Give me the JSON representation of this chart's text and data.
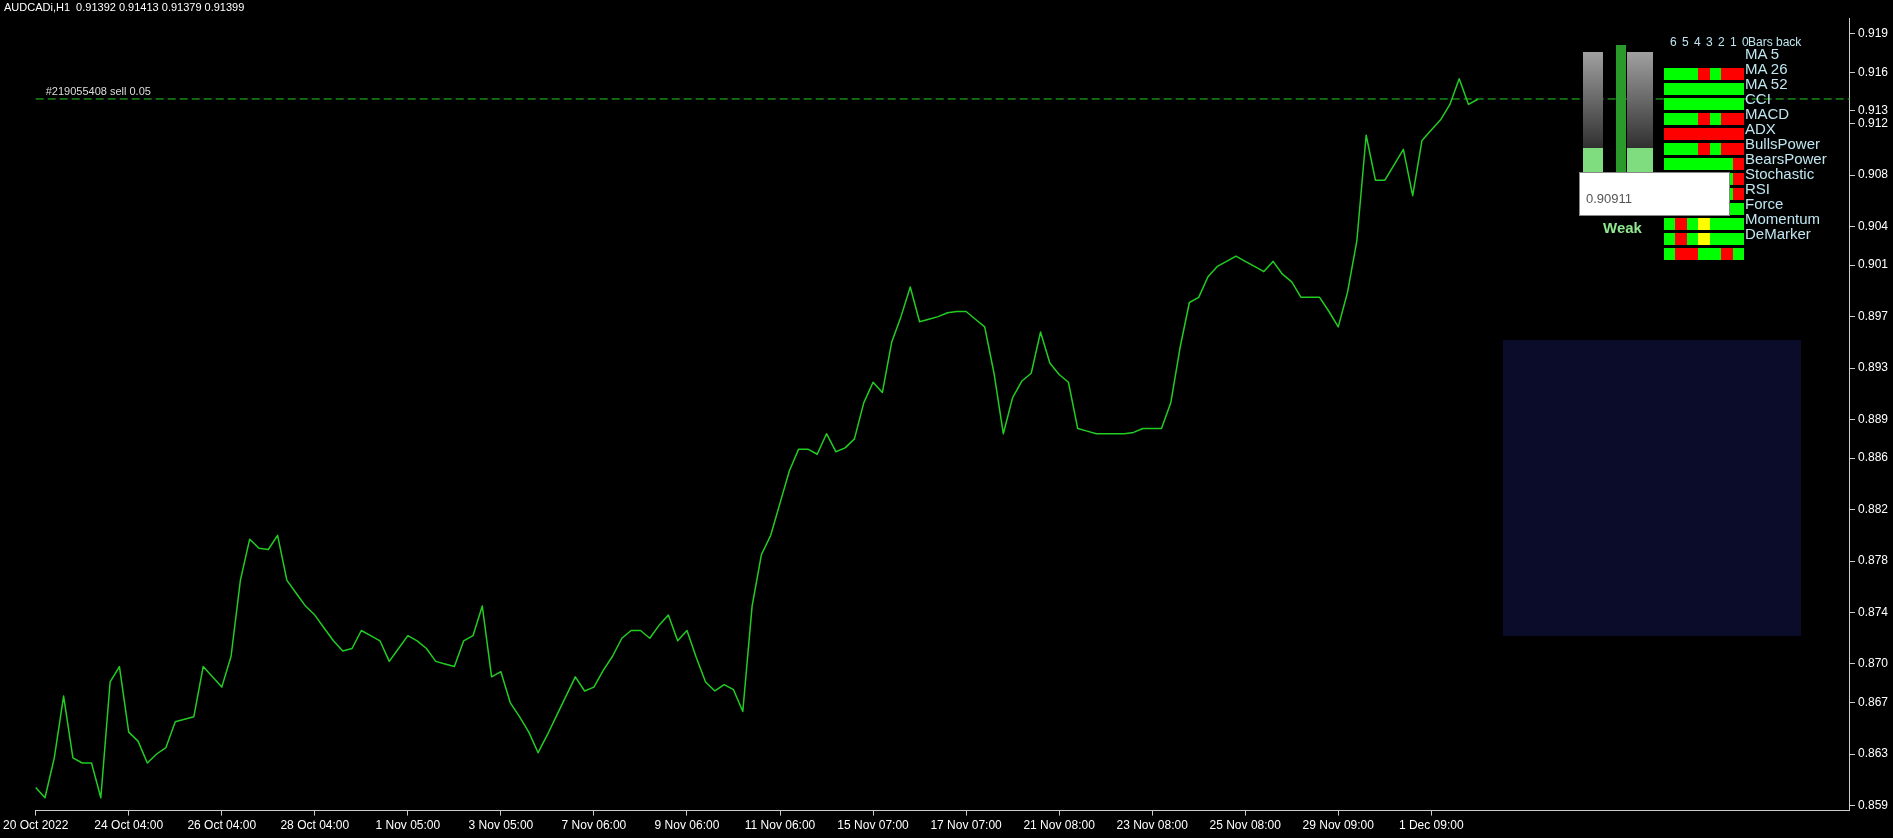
{
  "chart_data": {
    "type": "line",
    "title": "AUDCADi,H1  0.91392 0.91413 0.91379 0.91399",
    "categories": [
      "20 Oct 2022",
      null,
      null,
      null,
      null,
      null,
      null,
      null,
      null,
      null,
      "24 Oct 04:00",
      null,
      null,
      null,
      null,
      null,
      null,
      null,
      null,
      null,
      "26 Oct 04:00",
      null,
      null,
      null,
      null,
      null,
      null,
      null,
      null,
      null,
      "28 Oct 04:00",
      null,
      null,
      null,
      null,
      null,
      null,
      null,
      null,
      null,
      "1 Nov 05:00",
      null,
      null,
      null,
      null,
      null,
      null,
      null,
      null,
      null,
      "3 Nov 05:00",
      null,
      null,
      null,
      null,
      null,
      null,
      null,
      null,
      null,
      "7 Nov 06:00",
      null,
      null,
      null,
      null,
      null,
      null,
      null,
      null,
      null,
      "9 Nov 06:00",
      null,
      null,
      null,
      null,
      null,
      null,
      null,
      null,
      null,
      "11 Nov 06:00",
      null,
      null,
      null,
      null,
      null,
      null,
      null,
      null,
      null,
      "15 Nov 07:00",
      null,
      null,
      null,
      null,
      null,
      null,
      null,
      null,
      null,
      "17 Nov 07:00",
      null,
      null,
      null,
      null,
      null,
      null,
      null,
      null,
      null,
      "21 Nov 08:00",
      null,
      null,
      null,
      null,
      null,
      null,
      null,
      null,
      null,
      "23 Nov 08:00",
      null,
      null,
      null,
      null,
      null,
      null,
      null,
      null,
      null,
      "25 Nov 08:00",
      null,
      null,
      null,
      null,
      null,
      null,
      null,
      null,
      null,
      "29 Nov 09:00",
      null,
      null,
      null,
      null,
      null,
      null,
      null,
      null,
      null,
      "1 Dec 09:00",
      null,
      null,
      null,
      null,
      null,
      null,
      null,
      null,
      null,
      null,
      null,
      null,
      null,
      null,
      null,
      null,
      null,
      null,
      null,
      null,
      null,
      null,
      null,
      null,
      null,
      null,
      null,
      null,
      null,
      null,
      null,
      null,
      null,
      null,
      null,
      null,
      null,
      null,
      null,
      null,
      null,
      null,
      null,
      null,
      null
    ],
    "values": [
      0.8604,
      0.8596,
      0.8627,
      0.8675,
      0.8627,
      0.8623,
      0.8623,
      0.8596,
      0.8686,
      0.8698,
      0.8647,
      0.864,
      0.8623,
      0.863,
      0.8635,
      0.8655,
      0.8657,
      0.8659,
      0.8698,
      0.869,
      0.8682,
      0.8706,
      0.8765,
      0.8797,
      0.879,
      0.8789,
      0.88,
      0.8765,
      0.8755,
      0.8745,
      0.8738,
      0.8728,
      0.8718,
      0.871,
      0.8712,
      0.8726,
      0.8722,
      0.8718,
      0.8702,
      0.8712,
      0.8722,
      0.8718,
      0.8712,
      0.8702,
      0.87,
      0.8698,
      0.8718,
      0.8722,
      0.8745,
      0.869,
      0.8694,
      0.867,
      0.8659,
      0.8647,
      0.8631,
      0.8645,
      0.866,
      0.8675,
      0.869,
      0.8679,
      0.8682,
      0.8695,
      0.8706,
      0.872,
      0.8726,
      0.8726,
      0.872,
      0.873,
      0.8738,
      0.8718,
      0.8726,
      0.8705,
      0.8686,
      0.8679,
      0.8684,
      0.868,
      0.8663,
      0.8745,
      0.8785,
      0.88,
      0.8825,
      0.885,
      0.8867,
      0.8867,
      0.8863,
      0.8879,
      0.8865,
      0.8868,
      0.8875,
      0.8903,
      0.8919,
      0.8911,
      0.895,
      0.897,
      0.8993,
      0.8966,
      0.8968,
      0.897,
      0.8973,
      0.8974,
      0.8974,
      0.8968,
      0.8962,
      0.8926,
      0.8879,
      0.8907,
      0.892,
      0.8926,
      0.8958,
      0.8934,
      0.8925,
      0.8919,
      0.8883,
      0.8881,
      0.8879,
      0.8879,
      0.8879,
      0.8879,
      0.888,
      0.8883,
      0.8883,
      0.8883,
      0.8903,
      0.8946,
      0.8981,
      0.8985,
      0.9001,
      0.9009,
      0.9013,
      0.9017,
      0.9013,
      0.9009,
      0.9005,
      0.9013,
      0.9003,
      0.8997,
      0.8985,
      0.8985,
      0.8985,
      0.8974,
      0.8962,
      0.8989,
      0.9029,
      0.9111,
      0.9076,
      0.9076,
      0.9088,
      0.91,
      0.9064,
      0.9107,
      0.9115,
      0.9123,
      0.9135,
      0.9155,
      0.9135,
      0.9139,
      null,
      null,
      null,
      null,
      null,
      null,
      null,
      null,
      null,
      null,
      null,
      null,
      null,
      null,
      null,
      null,
      null,
      null,
      null,
      null,
      null,
      null,
      null,
      null,
      null,
      null,
      null,
      null,
      null,
      null,
      null,
      null,
      null,
      null,
      null,
      null,
      null,
      null,
      null,
      null
    ],
    "color": "#22cc22",
    "ylim": [
      0.8586,
      0.9202
    ],
    "yticks": [
      0.859,
      0.863,
      0.867,
      {
        "value": 0.87,
        "label": "0.870"
      },
      0.874,
      0.878,
      0.882,
      0.886,
      0.889,
      0.893,
      0.897,
      0.901,
      0.904,
      0.908,
      0.912,
      0.913,
      0.916,
      0.919
    ],
    "grid": false,
    "legend": false,
    "marker": "none",
    "line_style": "solid",
    "ref_lines": [
      {
        "axis": "y",
        "value": 0.91392,
        "label": "#219055408 sell 0.05",
        "color": "#22cc22",
        "line_style": "dashed"
      }
    ],
    "annotations": [
      "6 5 4 3 2 1 0",
      "Bars back",
      "MA 5",
      "MA 26",
      "MA 52",
      "CCI",
      "MACD",
      "ADX",
      "BullsPower",
      "BearsPower",
      "Stochastic",
      "RSI",
      "Force",
      "Momentum",
      "DeMarker",
      "Weak",
      "0.90911"
    ]
  }
}
